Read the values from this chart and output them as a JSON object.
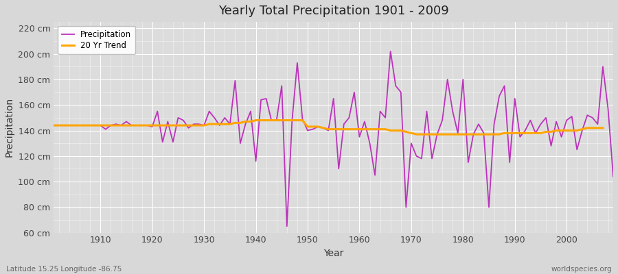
{
  "title": "Yearly Total Precipitation 1901 - 2009",
  "xlabel": "Year",
  "ylabel": "Precipitation",
  "subtitle_left": "Latitude 15.25 Longitude -86.75",
  "subtitle_right": "worldspecies.org",
  "ylim": [
    60,
    225
  ],
  "yticks": [
    60,
    80,
    100,
    120,
    140,
    160,
    180,
    200,
    220
  ],
  "ytick_suffix": " cm",
  "bg_color": "#d8d8d8",
  "plot_bg_color": "#dcdcdc",
  "precip_color": "#bb33bb",
  "trend_color": "#ffa500",
  "precip_label": "Precipitation",
  "trend_label": "20 Yr Trend",
  "years": [
    1901,
    1902,
    1903,
    1904,
    1905,
    1906,
    1907,
    1908,
    1909,
    1910,
    1911,
    1912,
    1913,
    1914,
    1915,
    1916,
    1917,
    1918,
    1919,
    1920,
    1921,
    1922,
    1923,
    1924,
    1925,
    1926,
    1927,
    1928,
    1929,
    1930,
    1931,
    1932,
    1933,
    1934,
    1935,
    1936,
    1937,
    1938,
    1939,
    1940,
    1941,
    1942,
    1943,
    1944,
    1945,
    1946,
    1947,
    1948,
    1949,
    1950,
    1951,
    1952,
    1953,
    1954,
    1955,
    1956,
    1957,
    1958,
    1959,
    1960,
    1961,
    1962,
    1963,
    1964,
    1965,
    1966,
    1967,
    1968,
    1969,
    1970,
    1971,
    1972,
    1973,
    1974,
    1975,
    1976,
    1977,
    1978,
    1979,
    1980,
    1981,
    1982,
    1983,
    1984,
    1985,
    1986,
    1987,
    1988,
    1989,
    1990,
    1991,
    1992,
    1993,
    1994,
    1995,
    1996,
    1997,
    1998,
    1999,
    2000,
    2001,
    2002,
    2003,
    2004,
    2005,
    2006,
    2007,
    2008,
    2009
  ],
  "precip": [
    144,
    144,
    144,
    144,
    144,
    144,
    144,
    144,
    144,
    144,
    141,
    144,
    145,
    144,
    147,
    144,
    144,
    144,
    144,
    143,
    155,
    131,
    147,
    131,
    150,
    148,
    142,
    145,
    145,
    144,
    155,
    150,
    144,
    150,
    145,
    179,
    130,
    145,
    155,
    116,
    164,
    165,
    148,
    148,
    175,
    65,
    148,
    193,
    149,
    140,
    141,
    143,
    142,
    140,
    165,
    110,
    145,
    150,
    170,
    135,
    147,
    130,
    105,
    155,
    150,
    202,
    175,
    170,
    80,
    130,
    120,
    118,
    155,
    118,
    137,
    148,
    180,
    155,
    138,
    180,
    115,
    137,
    145,
    138,
    80,
    145,
    167,
    175,
    115,
    165,
    135,
    140,
    148,
    138,
    145,
    150,
    128,
    147,
    135,
    148,
    151,
    125,
    140,
    152,
    150,
    145,
    190,
    157,
    104
  ],
  "trend": [
    144,
    144,
    144,
    144,
    144,
    144,
    144,
    144,
    144,
    144,
    144,
    144,
    144,
    144,
    144,
    144,
    144,
    144,
    144,
    144,
    144,
    144,
    144,
    144,
    144,
    144,
    144,
    144,
    144,
    144,
    145,
    145,
    145,
    145,
    145,
    146,
    146,
    147,
    147,
    148,
    148,
    148,
    148,
    148,
    148,
    148,
    148,
    148,
    148,
    143,
    143,
    143,
    142,
    141,
    141,
    141,
    141,
    141,
    141,
    141,
    141,
    141,
    141,
    141,
    141,
    140,
    140,
    140,
    139,
    138,
    137,
    137,
    137,
    137,
    137,
    137,
    137,
    137,
    137,
    137,
    137,
    137,
    137,
    137,
    137,
    137,
    137,
    138,
    138,
    138,
    138,
    138,
    138,
    138,
    138,
    139,
    139,
    140,
    140,
    140,
    140,
    140,
    141,
    142,
    142,
    142,
    142,
    null,
    null
  ],
  "xticks": [
    1910,
    1920,
    1930,
    1940,
    1950,
    1960,
    1970,
    1980,
    1990,
    2000
  ],
  "xlim": [
    1901,
    2009
  ]
}
